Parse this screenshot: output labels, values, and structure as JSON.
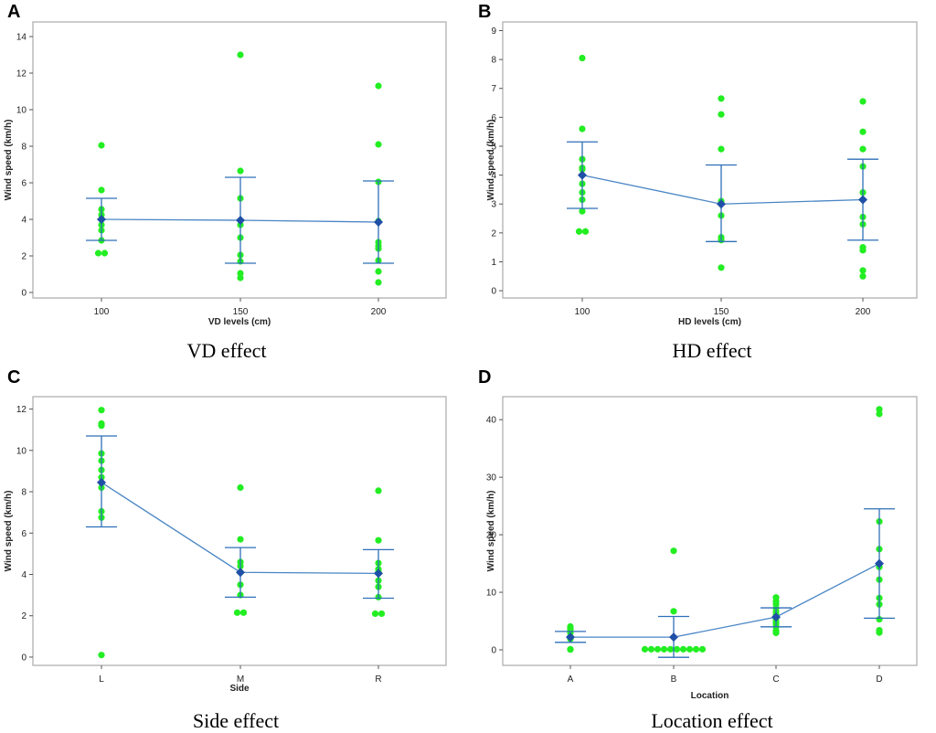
{
  "figure": {
    "colors": {
      "points": "#22ee22",
      "mean": "#1f4fa6",
      "line": "#4a86c5",
      "errorbar": "#2e6fb8",
      "frame": "#aaaaaa",
      "plot_bg": "#ffffff"
    }
  },
  "chart_data": [
    {
      "panel": "A",
      "caption": "VD effect",
      "type": "scatter",
      "xlabel": "VD levels (cm)",
      "ylabel": "Wind speed (km/h)",
      "categories": [
        "100",
        "150",
        "200"
      ],
      "ylim": [
        -0.3,
        14.8
      ],
      "yticks": [
        0,
        2,
        4,
        6,
        8,
        10,
        12,
        14
      ],
      "points": [
        [
          8.05,
          5.6,
          4.55,
          4.25,
          4.0,
          3.7,
          3.4,
          2.85,
          2.15,
          2.15
        ],
        [
          13.0,
          6.65,
          5.15,
          3.7,
          3.0,
          2.05,
          1.7,
          1.05,
          0.8
        ],
        [
          11.3,
          8.1,
          6.05,
          3.9,
          2.75,
          2.55,
          2.4,
          1.75,
          1.15,
          0.55
        ]
      ],
      "means": [
        4.0,
        3.95,
        3.85
      ],
      "err_low": [
        2.85,
        1.6,
        1.6
      ],
      "err_high": [
        5.15,
        6.3,
        6.1
      ]
    },
    {
      "panel": "B",
      "caption": "HD effect",
      "type": "scatter",
      "xlabel": "HD levels (cm)",
      "ylabel": "Wind speed (km/h)",
      "categories": [
        "100",
        "150",
        "200"
      ],
      "ylim": [
        -0.25,
        9.3
      ],
      "yticks": [
        0,
        1,
        2,
        3,
        4,
        5,
        6,
        7,
        8,
        9
      ],
      "points": [
        [
          8.05,
          5.6,
          4.55,
          4.25,
          4.2,
          3.7,
          3.4,
          3.15,
          2.75,
          2.05,
          2.05
        ],
        [
          6.65,
          6.1,
          4.9,
          3.1,
          2.6,
          1.85,
          1.75,
          0.8
        ],
        [
          6.55,
          5.5,
          4.9,
          4.3,
          3.4,
          2.55,
          2.3,
          1.5,
          1.4,
          0.7,
          0.5
        ]
      ],
      "means": [
        4.0,
        3.0,
        3.15
      ],
      "err_low": [
        2.85,
        1.7,
        1.75
      ],
      "err_high": [
        5.15,
        4.35,
        4.55
      ]
    },
    {
      "panel": "C",
      "caption": "Side effect",
      "type": "scatter",
      "xlabel": "Side",
      "ylabel": "Wind speed (km/h)",
      "categories": [
        "L",
        "M",
        "R"
      ],
      "ylim": [
        -0.4,
        12.6
      ],
      "yticks": [
        0,
        2,
        4,
        6,
        8,
        10,
        12
      ],
      "points": [
        [
          11.95,
          11.3,
          11.2,
          9.85,
          9.5,
          9.05,
          8.7,
          8.2,
          7.05,
          6.75,
          0.1
        ],
        [
          8.2,
          5.7,
          4.6,
          4.4,
          4.1,
          3.5,
          3.0,
          2.15,
          2.15
        ],
        [
          8.05,
          5.65,
          4.55,
          4.25,
          4.1,
          3.7,
          3.4,
          2.9,
          2.1,
          2.1
        ]
      ],
      "means": [
        8.45,
        4.1,
        4.05
      ],
      "err_low": [
        6.3,
        2.9,
        2.85
      ],
      "err_high": [
        10.7,
        5.3,
        5.2
      ]
    },
    {
      "panel": "D",
      "caption": "Location effect",
      "type": "scatter",
      "xlabel": "Location",
      "ylabel": "Wind speed (km/h)",
      "categories": [
        "A",
        "B",
        "C",
        "D"
      ],
      "ylim": [
        -2.7,
        44.0
      ],
      "yticks": [
        0,
        10,
        20,
        30,
        40
      ],
      "points": [
        [
          4.05,
          3.7,
          3.5,
          2.95,
          2.25,
          2.1,
          1.9,
          0.1,
          0.05
        ],
        [
          17.2,
          6.7,
          0.1,
          0.1,
          0.1,
          0.1,
          0.1,
          0.1,
          0.1,
          0.1,
          0.1,
          0.1
        ],
        [
          9.1,
          8.5,
          7.95,
          7.2,
          6.6,
          6.1,
          5.5,
          4.95,
          4.5,
          4.0,
          3.3,
          2.95
        ],
        [
          41.8,
          41.0,
          22.3,
          17.5,
          14.4,
          12.2,
          9.0,
          7.9,
          5.3,
          3.4,
          3.0
        ]
      ],
      "means": [
        2.2,
        2.2,
        5.7,
        15.0
      ],
      "err_low": [
        1.3,
        -1.3,
        4.0,
        5.5
      ],
      "err_high": [
        3.2,
        5.8,
        7.3,
        24.5
      ]
    }
  ]
}
